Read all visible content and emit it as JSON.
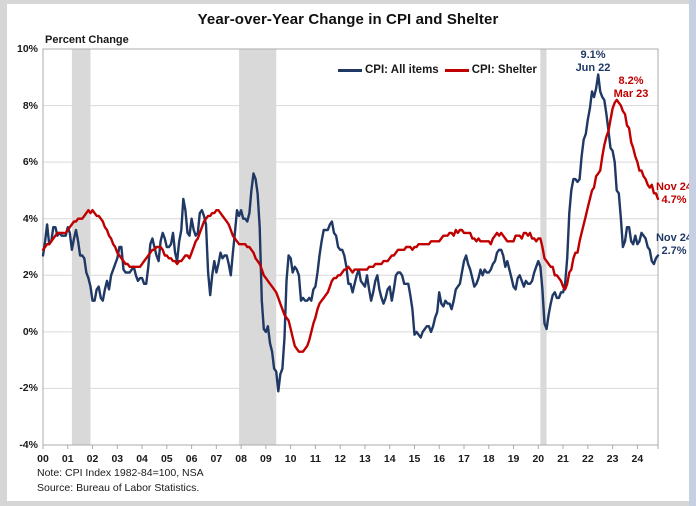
{
  "title": "Year-over-Year Change in CPI and Shelter",
  "notes": {
    "line1": "Note: CPI Index 1982-84=100, NSA",
    "line2": "Source: Bureau of Labor Statistics."
  },
  "annotations": {
    "all_items_peak": {
      "line1": "9.1%",
      "line2": "Jun 22"
    },
    "shelter_peak": {
      "line1": "8.2%",
      "line2": "Mar 23"
    },
    "shelter_latest": {
      "line1": "Nov 24",
      "line2": "4.7%"
    },
    "all_items_latest": {
      "line1": "Nov 24",
      "line2": "2.7%"
    }
  },
  "chart_data": {
    "type": "line",
    "title": "Year-over-Year Change in CPI and Shelter",
    "ylabel": "Percent Change",
    "xlabel": "",
    "x_unit": "month",
    "x_start": "2000-01",
    "x_end": "2024-11",
    "ylim": [
      -4,
      10
    ],
    "grid": "horizontal-only",
    "legend_position": "top-center",
    "xticks": [
      "00",
      "01",
      "02",
      "03",
      "04",
      "05",
      "06",
      "07",
      "08",
      "09",
      "10",
      "11",
      "12",
      "13",
      "14",
      "15",
      "16",
      "17",
      "18",
      "19",
      "20",
      "21",
      "22",
      "23",
      "24"
    ],
    "yticks": [
      {
        "v": 10,
        "label": "10%"
      },
      {
        "v": 8,
        "label": "8%"
      },
      {
        "v": 6,
        "label": "6%"
      },
      {
        "v": 4,
        "label": "4%"
      },
      {
        "v": 2,
        "label": "2%"
      },
      {
        "v": 0,
        "label": "0%"
      },
      {
        "v": -2,
        "label": "-2%"
      },
      {
        "v": -4,
        "label": "-4%"
      }
    ],
    "recession_bands_month_idx": [
      [
        14,
        23
      ],
      [
        95,
        113
      ],
      [
        241,
        244
      ]
    ],
    "band_color": "#d9d9d9",
    "grid_color": "#d9d9d9",
    "border_color": "#ababab",
    "series": [
      {
        "name": "CPI: All items",
        "color": "#1f3864",
        "values": [
          2.7,
          3.2,
          3.8,
          3.1,
          3.2,
          3.7,
          3.7,
          3.4,
          3.5,
          3.4,
          3.4,
          3.4,
          3.7,
          3.5,
          2.9,
          3.3,
          3.6,
          3.2,
          2.7,
          2.7,
          2.6,
          2.1,
          1.9,
          1.6,
          1.1,
          1.1,
          1.5,
          1.6,
          1.2,
          1.1,
          1.5,
          1.8,
          1.5,
          2.0,
          2.2,
          2.4,
          2.6,
          3.0,
          3.0,
          2.2,
          2.1,
          2.1,
          2.1,
          2.2,
          2.3,
          2.0,
          1.8,
          1.9,
          1.9,
          1.7,
          1.7,
          2.3,
          3.1,
          3.3,
          3.0,
          2.7,
          2.5,
          3.2,
          3.5,
          3.3,
          3.0,
          3.0,
          3.1,
          3.5,
          2.8,
          2.5,
          3.2,
          3.6,
          4.7,
          4.3,
          3.5,
          3.4,
          4.0,
          3.6,
          3.4,
          3.5,
          4.2,
          4.3,
          4.1,
          3.8,
          2.1,
          1.3,
          2.0,
          2.5,
          2.1,
          2.4,
          2.8,
          2.6,
          2.7,
          2.7,
          2.4,
          2.0,
          2.8,
          3.5,
          4.3,
          4.1,
          4.3,
          4.0,
          4.0,
          3.9,
          4.2,
          5.0,
          5.6,
          5.4,
          4.9,
          3.7,
          1.1,
          0.1,
          0.0,
          0.2,
          -0.4,
          -0.7,
          -1.3,
          -1.4,
          -2.1,
          -1.5,
          -1.3,
          -0.2,
          1.8,
          2.7,
          2.6,
          2.1,
          2.3,
          2.2,
          2.0,
          1.1,
          1.2,
          1.1,
          1.1,
          1.2,
          1.1,
          1.5,
          1.6,
          2.1,
          2.7,
          3.2,
          3.6,
          3.6,
          3.6,
          3.8,
          3.9,
          3.5,
          3.4,
          3.0,
          2.9,
          2.9,
          2.7,
          2.3,
          1.7,
          1.7,
          1.4,
          1.7,
          2.0,
          2.2,
          1.8,
          1.7,
          1.6,
          2.0,
          1.5,
          1.1,
          1.4,
          1.8,
          2.0,
          1.5,
          1.2,
          1.0,
          1.2,
          1.5,
          1.6,
          1.1,
          1.5,
          2.0,
          2.1,
          2.1,
          2.0,
          1.7,
          1.7,
          1.7,
          1.3,
          0.8,
          -0.1,
          0.0,
          -0.1,
          -0.2,
          0.0,
          0.1,
          0.2,
          0.2,
          0.0,
          0.2,
          0.5,
          0.7,
          1.4,
          1.0,
          0.9,
          1.1,
          1.0,
          1.0,
          0.8,
          1.1,
          1.5,
          1.6,
          1.7,
          2.1,
          2.5,
          2.7,
          2.4,
          2.2,
          1.9,
          1.6,
          1.7,
          1.9,
          2.2,
          2.0,
          2.2,
          2.1,
          2.1,
          2.2,
          2.4,
          2.5,
          2.8,
          2.9,
          2.9,
          2.7,
          2.3,
          2.5,
          2.2,
          1.9,
          1.6,
          1.5,
          1.9,
          2.0,
          1.8,
          1.6,
          1.8,
          1.7,
          1.7,
          1.8,
          2.1,
          2.3,
          2.5,
          2.3,
          1.5,
          0.3,
          0.1,
          0.6,
          1.0,
          1.3,
          1.4,
          1.2,
          1.2,
          1.4,
          1.4,
          1.7,
          2.6,
          4.2,
          5.0,
          5.4,
          5.4,
          5.3,
          5.4,
          6.2,
          6.8,
          7.0,
          7.5,
          7.9,
          8.5,
          8.3,
          8.6,
          9.1,
          8.5,
          8.3,
          8.2,
          7.7,
          7.1,
          6.5,
          6.4,
          6.0,
          5.0,
          4.9,
          4.0,
          3.0,
          3.2,
          3.7,
          3.7,
          3.2,
          3.1,
          3.4,
          3.1,
          3.2,
          3.5,
          3.4,
          3.3,
          3.0,
          2.9,
          2.5,
          2.4,
          2.6,
          2.7
        ]
      },
      {
        "name": "CPI: Shelter",
        "color": "#c00000",
        "values": [
          2.9,
          3.0,
          3.1,
          3.1,
          3.2,
          3.3,
          3.4,
          3.5,
          3.5,
          3.5,
          3.5,
          3.5,
          3.6,
          3.7,
          3.8,
          3.9,
          3.9,
          4.0,
          4.0,
          4.0,
          4.1,
          4.2,
          4.3,
          4.2,
          4.3,
          4.2,
          4.1,
          4.1,
          4.0,
          3.9,
          3.7,
          3.6,
          3.4,
          3.3,
          3.1,
          3.0,
          2.8,
          2.7,
          2.6,
          2.5,
          2.4,
          2.4,
          2.3,
          2.3,
          2.3,
          2.3,
          2.3,
          2.3,
          2.4,
          2.5,
          2.6,
          2.7,
          2.8,
          2.9,
          2.9,
          3.0,
          3.0,
          3.0,
          2.9,
          2.7,
          2.7,
          2.6,
          2.6,
          2.5,
          2.5,
          2.4,
          2.5,
          2.5,
          2.6,
          2.7,
          2.7,
          2.6,
          2.8,
          3.0,
          3.2,
          3.3,
          3.5,
          3.7,
          3.9,
          4.0,
          4.1,
          4.1,
          4.2,
          4.2,
          4.3,
          4.3,
          4.2,
          4.1,
          4.0,
          3.9,
          3.8,
          3.6,
          3.4,
          3.3,
          3.2,
          3.1,
          3.1,
          3.1,
          3.1,
          3.0,
          3.0,
          2.9,
          2.8,
          2.6,
          2.5,
          2.4,
          2.2,
          2.0,
          1.9,
          1.8,
          1.7,
          1.6,
          1.5,
          1.4,
          1.2,
          1.0,
          0.8,
          0.6,
          0.5,
          0.4,
          0.1,
          -0.2,
          -0.5,
          -0.6,
          -0.7,
          -0.7,
          -0.7,
          -0.6,
          -0.5,
          -0.3,
          0.0,
          0.3,
          0.5,
          0.8,
          1.0,
          1.1,
          1.2,
          1.3,
          1.4,
          1.6,
          1.8,
          1.9,
          1.9,
          2.0,
          2.0,
          2.1,
          2.2,
          2.2,
          2.3,
          2.2,
          2.1,
          2.2,
          2.2,
          2.2,
          2.2,
          2.2,
          2.2,
          2.2,
          2.3,
          2.3,
          2.3,
          2.4,
          2.4,
          2.4,
          2.4,
          2.5,
          2.5,
          2.5,
          2.6,
          2.7,
          2.7,
          2.8,
          2.9,
          2.9,
          2.9,
          2.9,
          3.0,
          3.0,
          3.0,
          2.9,
          3.0,
          3.0,
          3.1,
          3.1,
          3.1,
          3.1,
          3.1,
          3.1,
          3.2,
          3.2,
          3.2,
          3.2,
          3.2,
          3.3,
          3.4,
          3.4,
          3.4,
          3.5,
          3.5,
          3.4,
          3.6,
          3.5,
          3.6,
          3.6,
          3.5,
          3.5,
          3.5,
          3.5,
          3.3,
          3.3,
          3.2,
          3.3,
          3.2,
          3.2,
          3.2,
          3.2,
          3.2,
          3.1,
          3.3,
          3.4,
          3.5,
          3.4,
          3.5,
          3.4,
          3.3,
          3.2,
          3.2,
          3.2,
          3.2,
          3.4,
          3.4,
          3.4,
          3.3,
          3.5,
          3.5,
          3.4,
          3.5,
          3.3,
          3.3,
          3.2,
          3.3,
          3.3,
          3.0,
          2.6,
          2.5,
          2.4,
          2.3,
          2.3,
          2.0,
          2.0,
          1.9,
          1.8,
          1.6,
          1.5,
          1.7,
          2.1,
          2.2,
          2.6,
          2.8,
          2.8,
          3.2,
          3.5,
          3.8,
          4.1,
          4.4,
          4.7,
          5.0,
          5.1,
          5.5,
          5.6,
          5.7,
          6.2,
          6.6,
          6.9,
          7.1,
          7.5,
          7.9,
          8.1,
          8.2,
          8.1,
          8.0,
          7.8,
          7.7,
          7.3,
          7.2,
          6.7,
          6.5,
          6.2,
          6.0,
          5.7,
          5.7,
          5.5,
          5.4,
          5.2,
          5.1,
          5.2,
          4.9,
          4.9,
          4.7
        ]
      }
    ]
  }
}
